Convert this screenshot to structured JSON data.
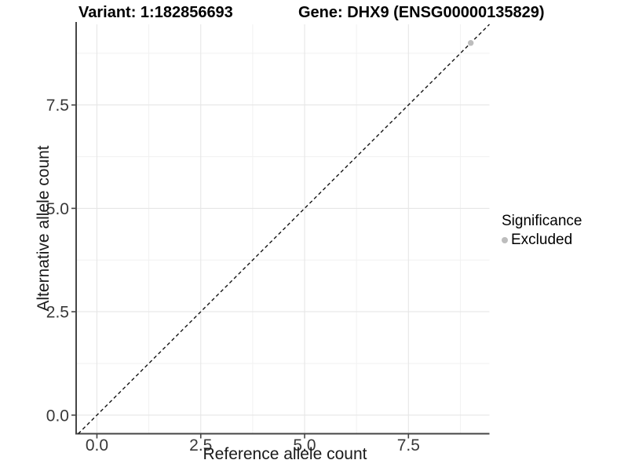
{
  "chart_data": {
    "type": "scatter",
    "title_left": "Variant: 1:182856693",
    "title_right": "Gene: DHX9 (ENSG00000135829)",
    "xlabel": "Reference allele count",
    "ylabel": "Alternative allele count",
    "xlim": [
      -0.5,
      9.45
    ],
    "ylim": [
      -0.45,
      9.45
    ],
    "x_major_ticks": [
      0,
      2.5,
      5,
      7.5
    ],
    "x_tick_labels": [
      "0.0",
      "2.5",
      "5.0",
      "7.5"
    ],
    "x_minor_ticks": [
      1.25,
      3.75,
      6.25,
      8.75
    ],
    "y_major_ticks": [
      0,
      2.5,
      5,
      7.5
    ],
    "y_tick_labels": [
      "0.0",
      "2.5",
      "5.0",
      "7.5"
    ],
    "y_minor_ticks": [
      1.25,
      3.75,
      6.25,
      8.75
    ],
    "grid": true,
    "reference_line": {
      "type": "identity",
      "style": "dashed",
      "color": "#141414"
    },
    "series": [
      {
        "name": "Excluded",
        "color": "#bdbdbd",
        "points": [
          [
            9,
            9
          ]
        ]
      }
    ],
    "legend": {
      "position": "right",
      "title": "Significance",
      "entries": [
        {
          "label": "Excluded",
          "color": "#bdbdbd",
          "marker": "circle"
        }
      ]
    }
  },
  "colors": {
    "background": "#ffffff",
    "axis_line": "#454545",
    "tick_mark": "#454545",
    "tick_text": "#383838",
    "grid_major": "#e6e6e6",
    "grid_minor": "#f1f1f1"
  }
}
